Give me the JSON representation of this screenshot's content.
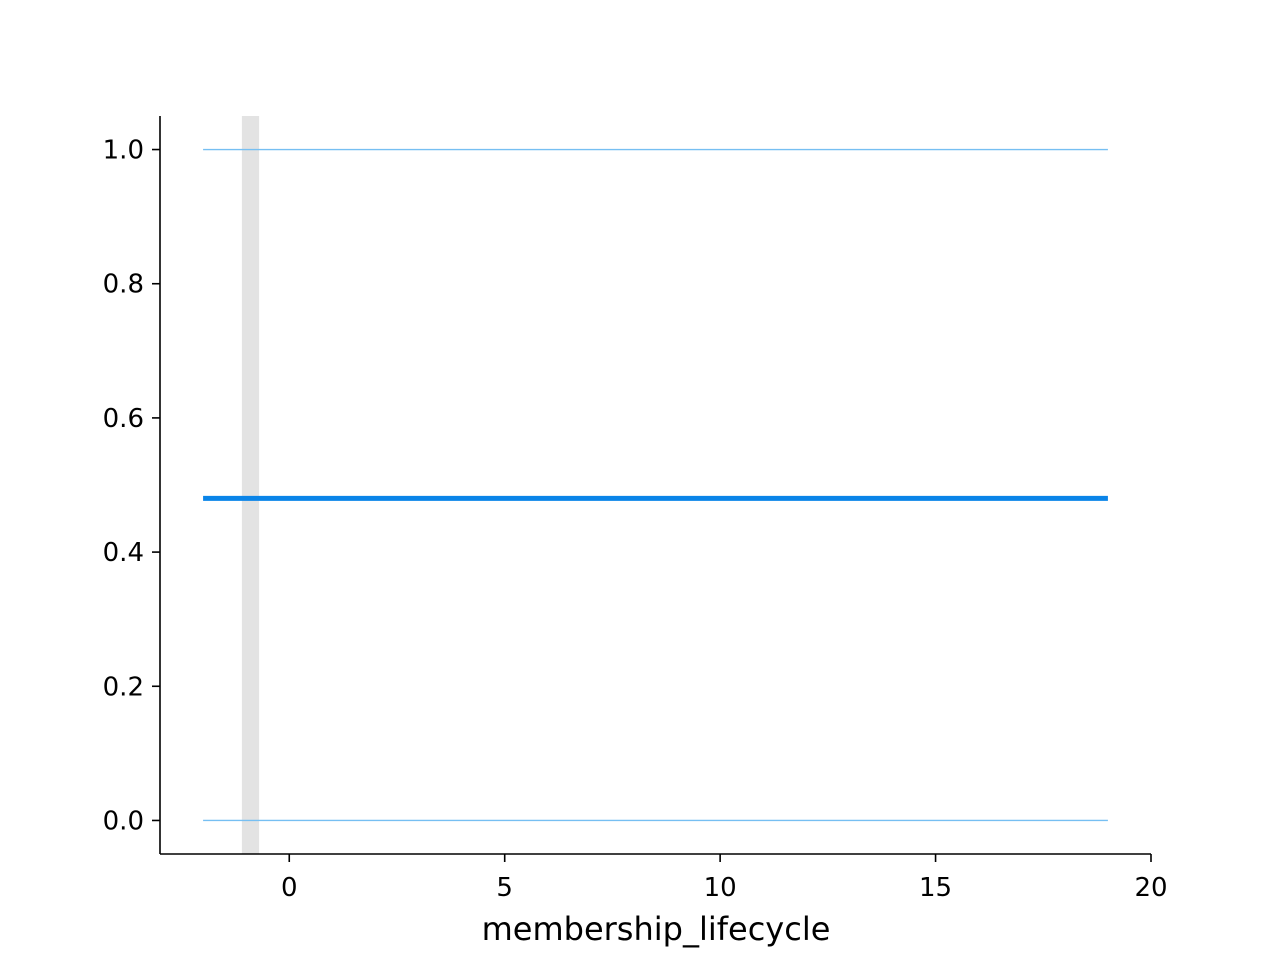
{
  "chart_data": {
    "type": "line",
    "title": "",
    "xlabel": "membership_lifecycle",
    "ylabel": "",
    "xlim": [
      -3,
      20
    ],
    "ylim": [
      -0.05,
      1.05
    ],
    "x_ticks": [
      0,
      5,
      10,
      15,
      20
    ],
    "y_ticks": [
      0.0,
      0.2,
      0.4,
      0.6,
      0.8,
      1.0
    ],
    "x_tick_labels": [
      "0",
      "5",
      "10",
      "15",
      "20"
    ],
    "y_tick_labels": [
      "0.0",
      "0.2",
      "0.4",
      "0.6",
      "0.8",
      "1.0"
    ],
    "grid": false,
    "series": [
      {
        "x": [
          -2,
          19
        ],
        "values": [
          0.48,
          0.48
        ],
        "color": "#0a84e8",
        "role": "main"
      },
      {
        "x": [
          -2,
          19
        ],
        "values": [
          1.0,
          1.0
        ],
        "color": "#76bff2",
        "role": "thin"
      },
      {
        "x": [
          -2,
          19
        ],
        "values": [
          0.0,
          0.0
        ],
        "color": "#76bff2",
        "role": "thin"
      }
    ],
    "bands": [
      {
        "x_start": -1.1,
        "x_end": -0.7,
        "color": "#e3e3e3"
      }
    ]
  }
}
